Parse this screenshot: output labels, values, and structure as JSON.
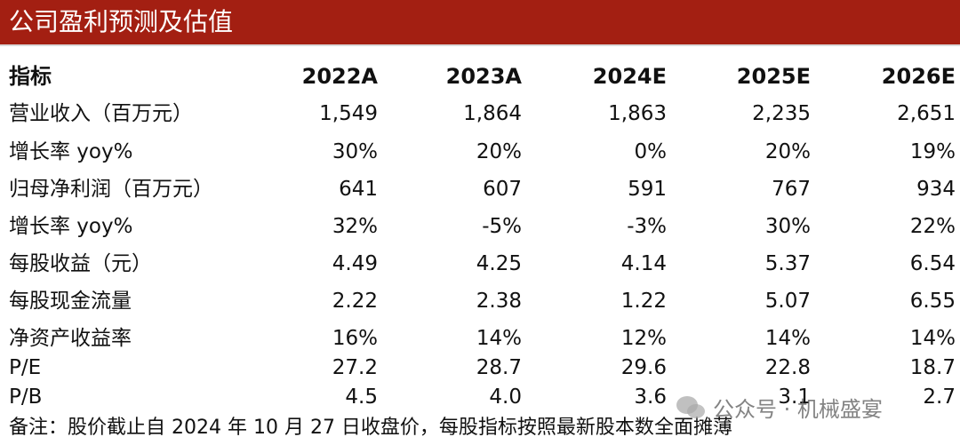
{
  "header": {
    "title": "公司盈利预测及估值"
  },
  "table": {
    "columns": [
      "指标",
      "2022A",
      "2023A",
      "2024E",
      "2025E",
      "2026E"
    ],
    "rows": [
      [
        "营业收入（百万元）",
        "1,549",
        "1,864",
        "1,863",
        "2,235",
        "2,651"
      ],
      [
        "增长率 yoy%",
        "30%",
        "20%",
        "0%",
        "20%",
        "19%"
      ],
      [
        "归母净利润（百万元）",
        "641",
        "607",
        "591",
        "767",
        "934"
      ],
      [
        "增长率 yoy%",
        "32%",
        "-5%",
        "-3%",
        "30%",
        "22%"
      ],
      [
        "每股收益（元）",
        "4.49",
        "4.25",
        "4.14",
        "5.37",
        "6.54"
      ],
      [
        "每股现金流量",
        "2.22",
        "2.38",
        "1.22",
        "5.07",
        "6.55"
      ],
      [
        "净资产收益率",
        "16%",
        "14%",
        "12%",
        "14%",
        "14%"
      ],
      [
        "P/E",
        "27.2",
        "28.7",
        "29.6",
        "22.8",
        "18.7"
      ],
      [
        "P/B",
        "4.5",
        "4.0",
        "3.6",
        "3.1",
        "2.7"
      ]
    ]
  },
  "note": "备注：股价截止自 2024 年 10 月 27 日收盘价，每股指标按照最新股本数全面摊薄",
  "watermark": "公众号 · 机械盛宴"
}
